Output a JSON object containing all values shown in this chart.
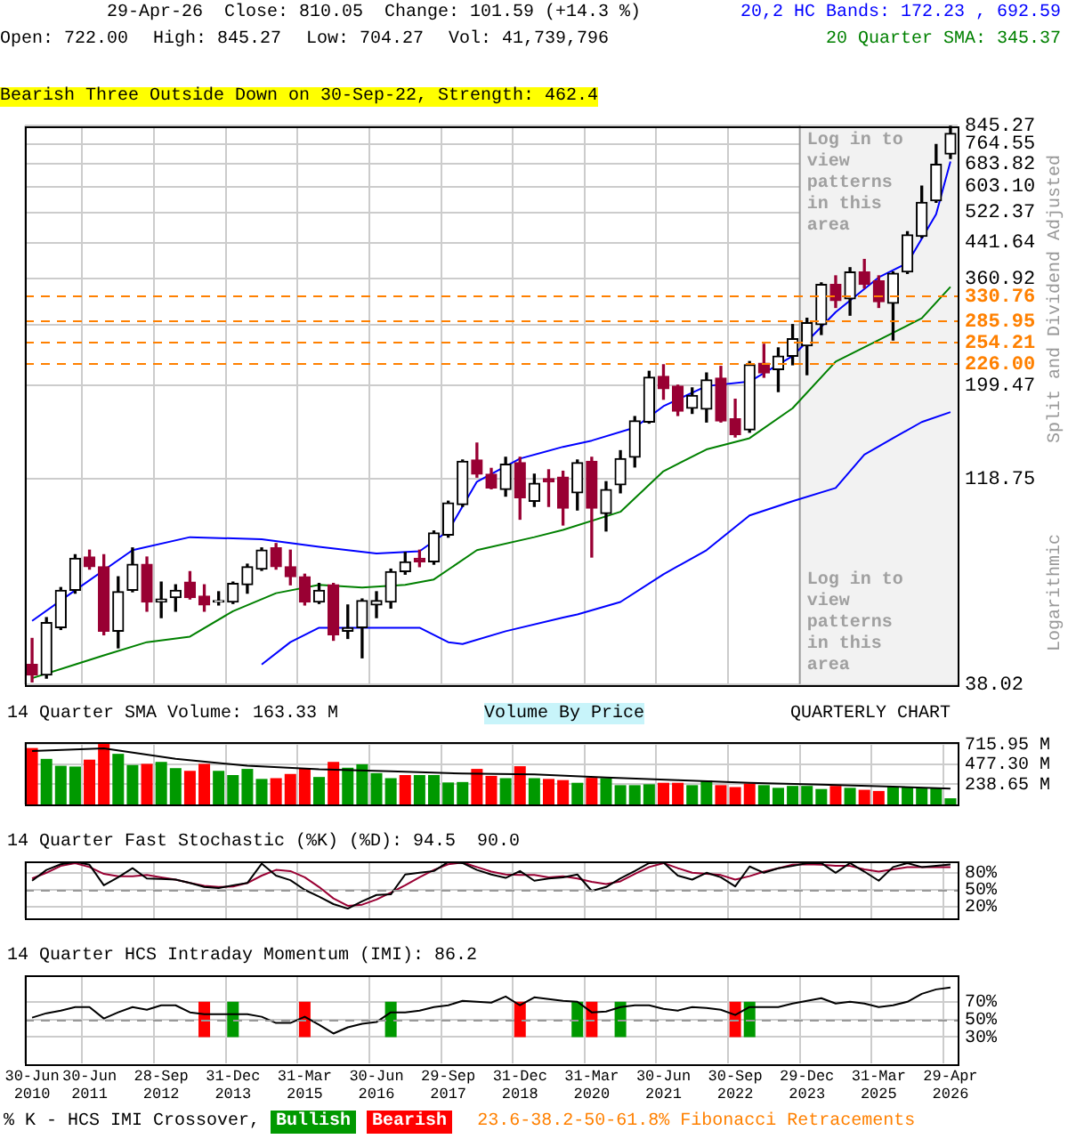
{
  "chart_data": [
    {
      "type": "candlestick",
      "categories": [
        "30-Jun 2010",
        null,
        null,
        null,
        "30-Jun 2011",
        null,
        null,
        null,
        null,
        "28-Sep 2012",
        null,
        null,
        null,
        null,
        "31-Dec 2013",
        null,
        null,
        null,
        null,
        "31-Mar 2015",
        null,
        null,
        null,
        null,
        "30-Jun 2016",
        null,
        null,
        null,
        null,
        "29-Sep 2017",
        null,
        null,
        null,
        null,
        "31-Dec 2018",
        null,
        null,
        null,
        null,
        "31-Mar 2020",
        null,
        null,
        null,
        null,
        "30-Jun 2021",
        null,
        null,
        null,
        null,
        "30-Sep 2022",
        null,
        null,
        null,
        null,
        "29-Dec 2023",
        null,
        null,
        null,
        null,
        "31-Mar 2025",
        null,
        null,
        null,
        null,
        "29-Apr 2026"
      ],
      "ohlc": [
        [
          42.4,
          49,
          38.5,
          40
        ],
        [
          40,
          55,
          39.3,
          53.5
        ],
        [
          52,
          65,
          51.5,
          64
        ],
        [
          64,
          78,
          63,
          76.5
        ],
        [
          77,
          80,
          72,
          73
        ],
        [
          73,
          78,
          50,
          51
        ],
        [
          51,
          69,
          46.5,
          63.5
        ],
        [
          64,
          81,
          63.5,
          74
        ],
        [
          74,
          77,
          57,
          60
        ],
        [
          60,
          67,
          55,
          61
        ],
        [
          61.5,
          66,
          57,
          64
        ],
        [
          67,
          71,
          61,
          61.5
        ],
        [
          62,
          66,
          57,
          59
        ],
        [
          60,
          63.5,
          59,
          60.5
        ],
        [
          60,
          67,
          59.5,
          66.5
        ],
        [
          66,
          74,
          63,
          73
        ],
        [
          72,
          81,
          71.5,
          80
        ],
        [
          81,
          83,
          72,
          73
        ],
        [
          73,
          80,
          66,
          69
        ],
        [
          69,
          70,
          59,
          60
        ],
        [
          60,
          66.5,
          59.5,
          64
        ],
        [
          66,
          66.5,
          48.5,
          50
        ],
        [
          51,
          59,
          49,
          52
        ],
        [
          52,
          61,
          44,
          60.5
        ],
        [
          59,
          63.5,
          55,
          60.5
        ],
        [
          60,
          72,
          58,
          71
        ],
        [
          71,
          79,
          70,
          75
        ],
        [
          76.5,
          80,
          73,
          75
        ],
        [
          75,
          89,
          74,
          88
        ],
        [
          87,
          105,
          86,
          104
        ],
        [
          103,
          132,
          102,
          131
        ],
        [
          132,
          145,
          120,
          122
        ],
        [
          122,
          126,
          112.5,
          113
        ],
        [
          112,
          134,
          108,
          129
        ],
        [
          130,
          134,
          95,
          107
        ],
        [
          105,
          122,
          102,
          116
        ],
        [
          119,
          125,
          102,
          117
        ],
        [
          120,
          124,
          92,
          101
        ],
        [
          110,
          132,
          100,
          130
        ],
        [
          131,
          134,
          77,
          101
        ],
        [
          98,
          117,
          89,
          112
        ],
        [
          115,
          139,
          110,
          133
        ],
        [
          134,
          168,
          127,
          164
        ],
        [
          163,
          216,
          162,
          209
        ],
        [
          210,
          224,
          185,
          196
        ],
        [
          199,
          200,
          169,
          173
        ],
        [
          176,
          197,
          171,
          189
        ],
        [
          175,
          214,
          163,
          206
        ],
        [
          208,
          222,
          163,
          164
        ],
        [
          166,
          185,
          150,
          152
        ],
        [
          156,
          228,
          154,
          224
        ],
        [
          226,
          251,
          209,
          214
        ],
        [
          218,
          246,
          193,
          235
        ],
        [
          235,
          280,
          224,
          259
        ],
        [
          249,
          290,
          212,
          283
        ],
        [
          280,
          353,
          265,
          350
        ],
        [
          350,
          367,
          308,
          320
        ],
        [
          323,
          384,
          295,
          375
        ],
        [
          375,
          402,
          343,
          350
        ],
        [
          357,
          367,
          308,
          318
        ],
        [
          315,
          375,
          257,
          372
        ],
        [
          375,
          469,
          372,
          461
        ],
        [
          457,
          604,
          454,
          552
        ],
        [
          557,
          761,
          552,
          682
        ],
        [
          722,
          845.27,
          704.27,
          810.05
        ]
      ],
      "series": [
        {
          "type": "line",
          "name": "20,2 HC Bands: 172.23 , 692.59",
          "color": "#0000ff",
          "values": [
            54,
            null,
            null,
            64,
            null,
            null,
            null,
            80,
            null,
            null,
            null,
            86,
            null,
            null,
            null,
            null,
            85,
            null,
            null,
            null,
            81.5,
            null,
            null,
            null,
            78.5,
            null,
            null,
            79.5,
            null,
            89,
            null,
            117,
            null,
            null,
            133,
            null,
            null,
            142,
            null,
            147,
            null,
            null,
            158,
            null,
            178,
            null,
            null,
            199,
            null,
            null,
            204,
            null,
            null,
            235,
            null,
            null,
            300,
            null,
            null,
            364,
            null,
            394,
            null,
            517,
            692.59
          ]
        },
        {
          "type": "line",
          "name": "20 Quarter SMA: 345.37",
          "color": "#008000",
          "values": [
            39.3,
            null,
            null,
            42.4,
            null,
            44.6,
            null,
            null,
            48,
            null,
            null,
            49.5,
            null,
            null,
            57,
            null,
            null,
            63,
            null,
            null,
            66,
            null,
            null,
            65,
            null,
            null,
            66,
            null,
            68,
            null,
            null,
            80,
            null,
            null,
            null,
            86,
            null,
            89.5,
            null,
            null,
            null,
            99,
            null,
            null,
            124,
            null,
            null,
            140,
            null,
            null,
            149,
            null,
            null,
            176,
            null,
            null,
            228,
            null,
            null,
            257,
            null,
            null,
            290,
            null,
            345.37
          ]
        },
        {
          "type": "line",
          "color": "#0000ff",
          "values": [
            null,
            null,
            null,
            null,
            null,
            null,
            null,
            null,
            null,
            null,
            null,
            null,
            null,
            null,
            null,
            null,
            42.4,
            null,
            48,
            null,
            52,
            null,
            null,
            null,
            52,
            null,
            null,
            52,
            null,
            48,
            47.5,
            null,
            null,
            51,
            null,
            null,
            null,
            55,
            56,
            null,
            null,
            60,
            null,
            null,
            70,
            null,
            null,
            80,
            null,
            null,
            97,
            null,
            null,
            105,
            null,
            null,
            113,
            null,
            136,
            null,
            149,
            null,
            163,
            null,
            172.23
          ]
        }
      ],
      "log": true,
      "ylim": [
        38.02,
        845.27
      ],
      "yticks": [
        38.02,
        118.75,
        199.47,
        {
          "value": 280.19,
          "label": null
        },
        360.92,
        441.64,
        522.37,
        {
          "value": 603.1,
          "label": "603.10"
        },
        683.82,
        764.55,
        845.27
      ],
      "grid": true,
      "tick_labels": "y",
      "legend": "top right",
      "ref_lines": [
        {
          "axis": "y",
          "value": 330.76,
          "label": "330.76",
          "color": "#ff8000",
          "line_style": "dashed"
        },
        {
          "axis": "y",
          "value": 285.95,
          "label": "285.95",
          "color": "#ff8000",
          "line_style": "dashed"
        },
        {
          "axis": "y",
          "value": 254.21,
          "label": "254.21",
          "color": "#ff8000",
          "line_style": "dashed"
        },
        {
          "axis": "y",
          "value": 226,
          "label": "226.00",
          "color": "#ff8000",
          "line_style": "dashed"
        }
      ],
      "bands": [
        {
          "axis": "x",
          "from": "29-Dec 2023",
          "to": "29-Apr 2026",
          "label": "Log in to view patterns in this area",
          "color": "#f2f2f2"
        }
      ],
      "annotations": [
        "29-Apr-26",
        "Close: 810.05",
        "Change: 101.59 (+14.3 %)",
        "Open: 722.00",
        "High: 845.27",
        "Low: 704.27",
        "Vol: 41,739,796",
        "Bearish Three Outside Down on 30-Sep-22, Strength: 462.4",
        "Split and Dividend Adjusted",
        "Logarithmic"
      ]
    },
    {
      "type": "bar",
      "title": "14 Quarter SMA Volume: 163.33 M",
      "categories": [
        "30-Jun 2010",
        null,
        null,
        null,
        "30-Jun 2011",
        null,
        null,
        null,
        null,
        "28-Sep 2012",
        null,
        null,
        null,
        null,
        "31-Dec 2013",
        null,
        null,
        null,
        null,
        "31-Mar 2015",
        null,
        null,
        null,
        null,
        "30-Jun 2016",
        null,
        null,
        null,
        null,
        "29-Sep 2017",
        null,
        null,
        null,
        null,
        "31-Dec 2018",
        null,
        null,
        null,
        null,
        "31-Mar 2020",
        null,
        null,
        null,
        null,
        "30-Jun 2021",
        null,
        null,
        null,
        null,
        "30-Sep 2022",
        null,
        null,
        null,
        null,
        "29-Dec 2023",
        null,
        null,
        null,
        null,
        "31-Mar 2025",
        null,
        null,
        null,
        null,
        "29-Apr 2026"
      ],
      "series": [
        {
          "type": "bar",
          "values": [
            670,
            541,
            459,
            450,
            532,
            734,
            601,
            468,
            482,
            505,
            431,
            399,
            482,
            399,
            349,
            422,
            303,
            312,
            362,
            431,
            326,
            505,
            436,
            477,
            372,
            312,
            349,
            349,
            349,
            261,
            266,
            422,
            339,
            312,
            454,
            312,
            303,
            289,
            257,
            316,
            312,
            229,
            229,
            239,
            257,
            257,
            229,
            284,
            229,
            206,
            248,
            229,
            197,
            220,
            220,
            183,
            220,
            197,
            174,
            160,
            211,
            211,
            197,
            197,
            73
          ],
          "colors": [
            "#ff0000",
            "#009900",
            "#009900",
            "#009900",
            "#ff0000",
            "#ff0000",
            "#009900",
            "#009900",
            "#ff0000",
            "#009900",
            "#009900",
            "#ff0000",
            "#ff0000",
            "#009900",
            "#009900",
            "#009900",
            "#009900",
            "#ff0000",
            "#ff0000",
            "#ff0000",
            "#009900",
            "#ff0000",
            "#009900",
            "#009900",
            "#009900",
            "#009900",
            "#ff0000",
            "#009900",
            "#009900",
            "#009900",
            "#009900",
            "#ff0000",
            "#ff0000",
            "#009900",
            "#ff0000",
            "#009900",
            "#ff0000",
            "#ff0000",
            "#009900",
            "#ff0000",
            "#009900",
            "#009900",
            "#009900",
            "#009900",
            "#ff0000",
            "#ff0000",
            "#009900",
            "#009900",
            "#ff0000",
            "#ff0000",
            "#ff0000",
            "#009900",
            "#009900",
            "#009900",
            "#009900",
            "#009900",
            "#ff0000",
            "#009900",
            "#ff0000",
            "#ff0000",
            "#009900",
            "#009900",
            "#009900",
            "#009900",
            "#009900"
          ]
        },
        {
          "type": "line",
          "color": "#000000",
          "values": [
            633,
            null,
            null,
            null,
            null,
            665,
            null,
            null,
            null,
            null,
            541,
            null,
            null,
            null,
            null,
            459,
            null,
            null,
            null,
            null,
            417,
            null,
            null,
            null,
            null,
            394,
            null,
            null,
            null,
            null,
            367,
            null,
            null,
            null,
            null,
            358,
            null,
            null,
            null,
            null,
            321,
            null,
            null,
            null,
            null,
            289,
            null,
            null,
            null,
            null,
            257,
            null,
            null,
            null,
            null,
            234,
            null,
            null,
            null,
            null,
            211,
            null,
            null,
            null,
            188
          ]
        }
      ],
      "ylim": [
        0,
        740
      ],
      "yticks": [
        {
          "value": 238.65,
          "label": "238.65 M"
        },
        {
          "value": 477.3,
          "label": "477.30 M"
        },
        {
          "value": 715.95,
          "label": "715.95 M"
        }
      ],
      "grid": true,
      "tick_labels": "y",
      "annotations": [
        "Volume By Price",
        "QUARTERLY CHART"
      ]
    },
    {
      "type": "line",
      "title": "14 Quarter Fast Stochastic (%K) (%D): 94.5  90.0",
      "categories": [
        "30-Jun 2010",
        null,
        null,
        null,
        "30-Jun 2011",
        null,
        null,
        null,
        null,
        "28-Sep 2012",
        null,
        null,
        null,
        null,
        "31-Dec 2013",
        null,
        null,
        null,
        null,
        "31-Mar 2015",
        null,
        null,
        null,
        null,
        "30-Jun 2016",
        null,
        null,
        null,
        null,
        "29-Sep 2017",
        null,
        null,
        null,
        null,
        "31-Dec 2018",
        null,
        null,
        null,
        null,
        "31-Mar 2020",
        null,
        null,
        null,
        null,
        "30-Jun 2021",
        null,
        null,
        null,
        null,
        "30-Sep 2022",
        null,
        null,
        null,
        null,
        "29-Dec 2023",
        null,
        null,
        null,
        null,
        "31-Mar 2025",
        null,
        null,
        null,
        null,
        "29-Apr 2026"
      ],
      "series": [
        {
          "color": "#000000",
          "values": [
            66,
            85,
            95,
            99,
            94,
            58,
            72,
            88,
            70,
            69,
            68,
            62,
            55,
            53,
            58,
            62,
            96,
            75,
            67,
            50,
            38,
            25,
            17,
            30,
            41,
            42,
            77,
            80,
            83,
            99,
            97,
            85,
            77,
            71,
            83,
            66,
            70,
            72,
            77,
            48,
            55,
            70,
            83,
            97,
            98,
            75,
            68,
            80,
            72,
            56,
            91,
            80,
            88,
            92,
            97,
            97,
            80,
            97,
            82,
            66,
            90,
            97,
            90,
            92,
            94.5
          ]
        },
        {
          "color": "#990033",
          "values": [
            70,
            80,
            92,
            97,
            90,
            78,
            74,
            74,
            76,
            72,
            68,
            62,
            57,
            55,
            56,
            62,
            75,
            85,
            83,
            72,
            55,
            35,
            22,
            24,
            33,
            45,
            58,
            72,
            85,
            95,
            98,
            90,
            82,
            77,
            76,
            76,
            72,
            74,
            70,
            64,
            60,
            65,
            78,
            90,
            97,
            88,
            80,
            78,
            76,
            68,
            74,
            82,
            88,
            94,
            95,
            94,
            92,
            92,
            86,
            82,
            86,
            90,
            90,
            90,
            90
          ]
        }
      ],
      "ylim": [
        0,
        100
      ],
      "yticks": [
        {
          "value": 20,
          "label": "20%"
        },
        {
          "value": 50,
          "label": "50%"
        },
        {
          "value": 80,
          "label": "80%"
        }
      ],
      "grid": true,
      "tick_labels": "y",
      "ref_lines": [
        {
          "axis": "y",
          "value": 50,
          "color": "#999999",
          "line_style": "dashed"
        }
      ]
    },
    {
      "type": "line",
      "title": "14 Quarter HCS Intraday Momentum (IMI): 86.2",
      "categories": [
        "30-Jun 2010",
        null,
        null,
        null,
        "30-Jun 2011",
        null,
        null,
        null,
        null,
        "28-Sep 2012",
        null,
        null,
        null,
        null,
        "31-Dec 2013",
        null,
        null,
        null,
        null,
        "31-Mar 2015",
        null,
        null,
        null,
        null,
        "30-Jun 2016",
        null,
        null,
        null,
        null,
        "29-Sep 2017",
        null,
        null,
        null,
        null,
        "31-Dec 2018",
        null,
        null,
        null,
        null,
        "31-Mar 2020",
        null,
        null,
        null,
        null,
        "30-Jun 2021",
        null,
        null,
        null,
        null,
        "30-Sep 2022",
        null,
        null,
        null,
        null,
        "29-Dec 2023",
        null,
        null,
        null,
        null,
        "31-Mar 2025",
        null,
        null,
        null,
        null,
        "29-Apr 2026"
      ],
      "series": [
        {
          "type": "line",
          "color": "#000000",
          "values": [
            52,
            57,
            60,
            64,
            64,
            51,
            58,
            64,
            61,
            66,
            66,
            58,
            56,
            56,
            56,
            56,
            53,
            46,
            46,
            53,
            44,
            34,
            41,
            45,
            47,
            58,
            58,
            60,
            64,
            66,
            71,
            70,
            69,
            76,
            66,
            75,
            73,
            71,
            70,
            58,
            59,
            64,
            66,
            66,
            62,
            60,
            64,
            63,
            61,
            55,
            64,
            64,
            64,
            68,
            71,
            74,
            68,
            70,
            68,
            64,
            66,
            70,
            79,
            84,
            86.2
          ]
        },
        {
          "type": "bar",
          "name": "Bullish",
          "color": "#009900",
          "values": [
            null,
            null,
            null,
            null,
            null,
            null,
            null,
            null,
            null,
            null,
            null,
            null,
            null,
            null,
            40,
            null,
            null,
            null,
            null,
            null,
            null,
            null,
            null,
            null,
            null,
            40,
            null,
            null,
            null,
            null,
            null,
            null,
            null,
            null,
            null,
            null,
            null,
            null,
            40,
            null,
            null,
            40,
            null,
            null,
            null,
            null,
            null,
            null,
            null,
            null,
            40,
            null,
            null,
            null,
            null,
            null,
            null,
            null,
            null,
            null,
            null,
            null,
            null,
            null,
            null
          ],
          "base": [
            null,
            null,
            null,
            null,
            null,
            null,
            null,
            null,
            null,
            null,
            null,
            null,
            null,
            null,
            30,
            null,
            null,
            null,
            null,
            null,
            null,
            null,
            null,
            null,
            null,
            30,
            null,
            null,
            null,
            null,
            null,
            null,
            null,
            null,
            null,
            null,
            null,
            null,
            30,
            null,
            null,
            30,
            null,
            null,
            null,
            null,
            null,
            null,
            null,
            null,
            30,
            null,
            null,
            null,
            null,
            null,
            null,
            null,
            null,
            null,
            null,
            null,
            null,
            null,
            null
          ]
        },
        {
          "type": "bar",
          "name": "Bearish",
          "color": "#ff0000",
          "values": [
            null,
            null,
            null,
            null,
            null,
            null,
            null,
            null,
            null,
            null,
            null,
            null,
            40,
            null,
            null,
            null,
            null,
            null,
            null,
            40,
            null,
            null,
            null,
            null,
            null,
            null,
            null,
            null,
            null,
            null,
            null,
            null,
            null,
            null,
            40,
            null,
            null,
            null,
            null,
            40,
            null,
            null,
            null,
            null,
            null,
            null,
            null,
            null,
            null,
            40,
            null,
            null,
            null,
            null,
            null,
            null,
            null,
            null,
            null,
            null,
            null,
            null,
            null,
            null,
            null
          ],
          "base": [
            null,
            null,
            null,
            null,
            null,
            null,
            null,
            null,
            null,
            null,
            null,
            null,
            30,
            null,
            null,
            null,
            null,
            null,
            null,
            30,
            null,
            null,
            null,
            null,
            null,
            null,
            null,
            null,
            null,
            null,
            null,
            null,
            null,
            null,
            30,
            null,
            null,
            null,
            null,
            30,
            null,
            null,
            null,
            null,
            null,
            null,
            null,
            null,
            null,
            30,
            null,
            null,
            null,
            null,
            null,
            null,
            null,
            null,
            null,
            null,
            null,
            null,
            null,
            null,
            null
          ]
        }
      ],
      "ylim": [
        0,
        100
      ],
      "yticks": [
        {
          "value": 30,
          "label": "30%"
        },
        {
          "value": 50,
          "label": "50%"
        },
        {
          "value": 70,
          "label": "70%"
        }
      ],
      "grid": true,
      "legend": "bottom",
      "legend_title": "% K - HCS IMI Crossover,",
      "ref_lines": [
        {
          "axis": "y",
          "value": 50,
          "color": "#999999",
          "line_style": "dashed"
        }
      ],
      "annotations": [
        "23.6-38.2-50-61.8% Fibonacci Retracements"
      ]
    }
  ]
}
